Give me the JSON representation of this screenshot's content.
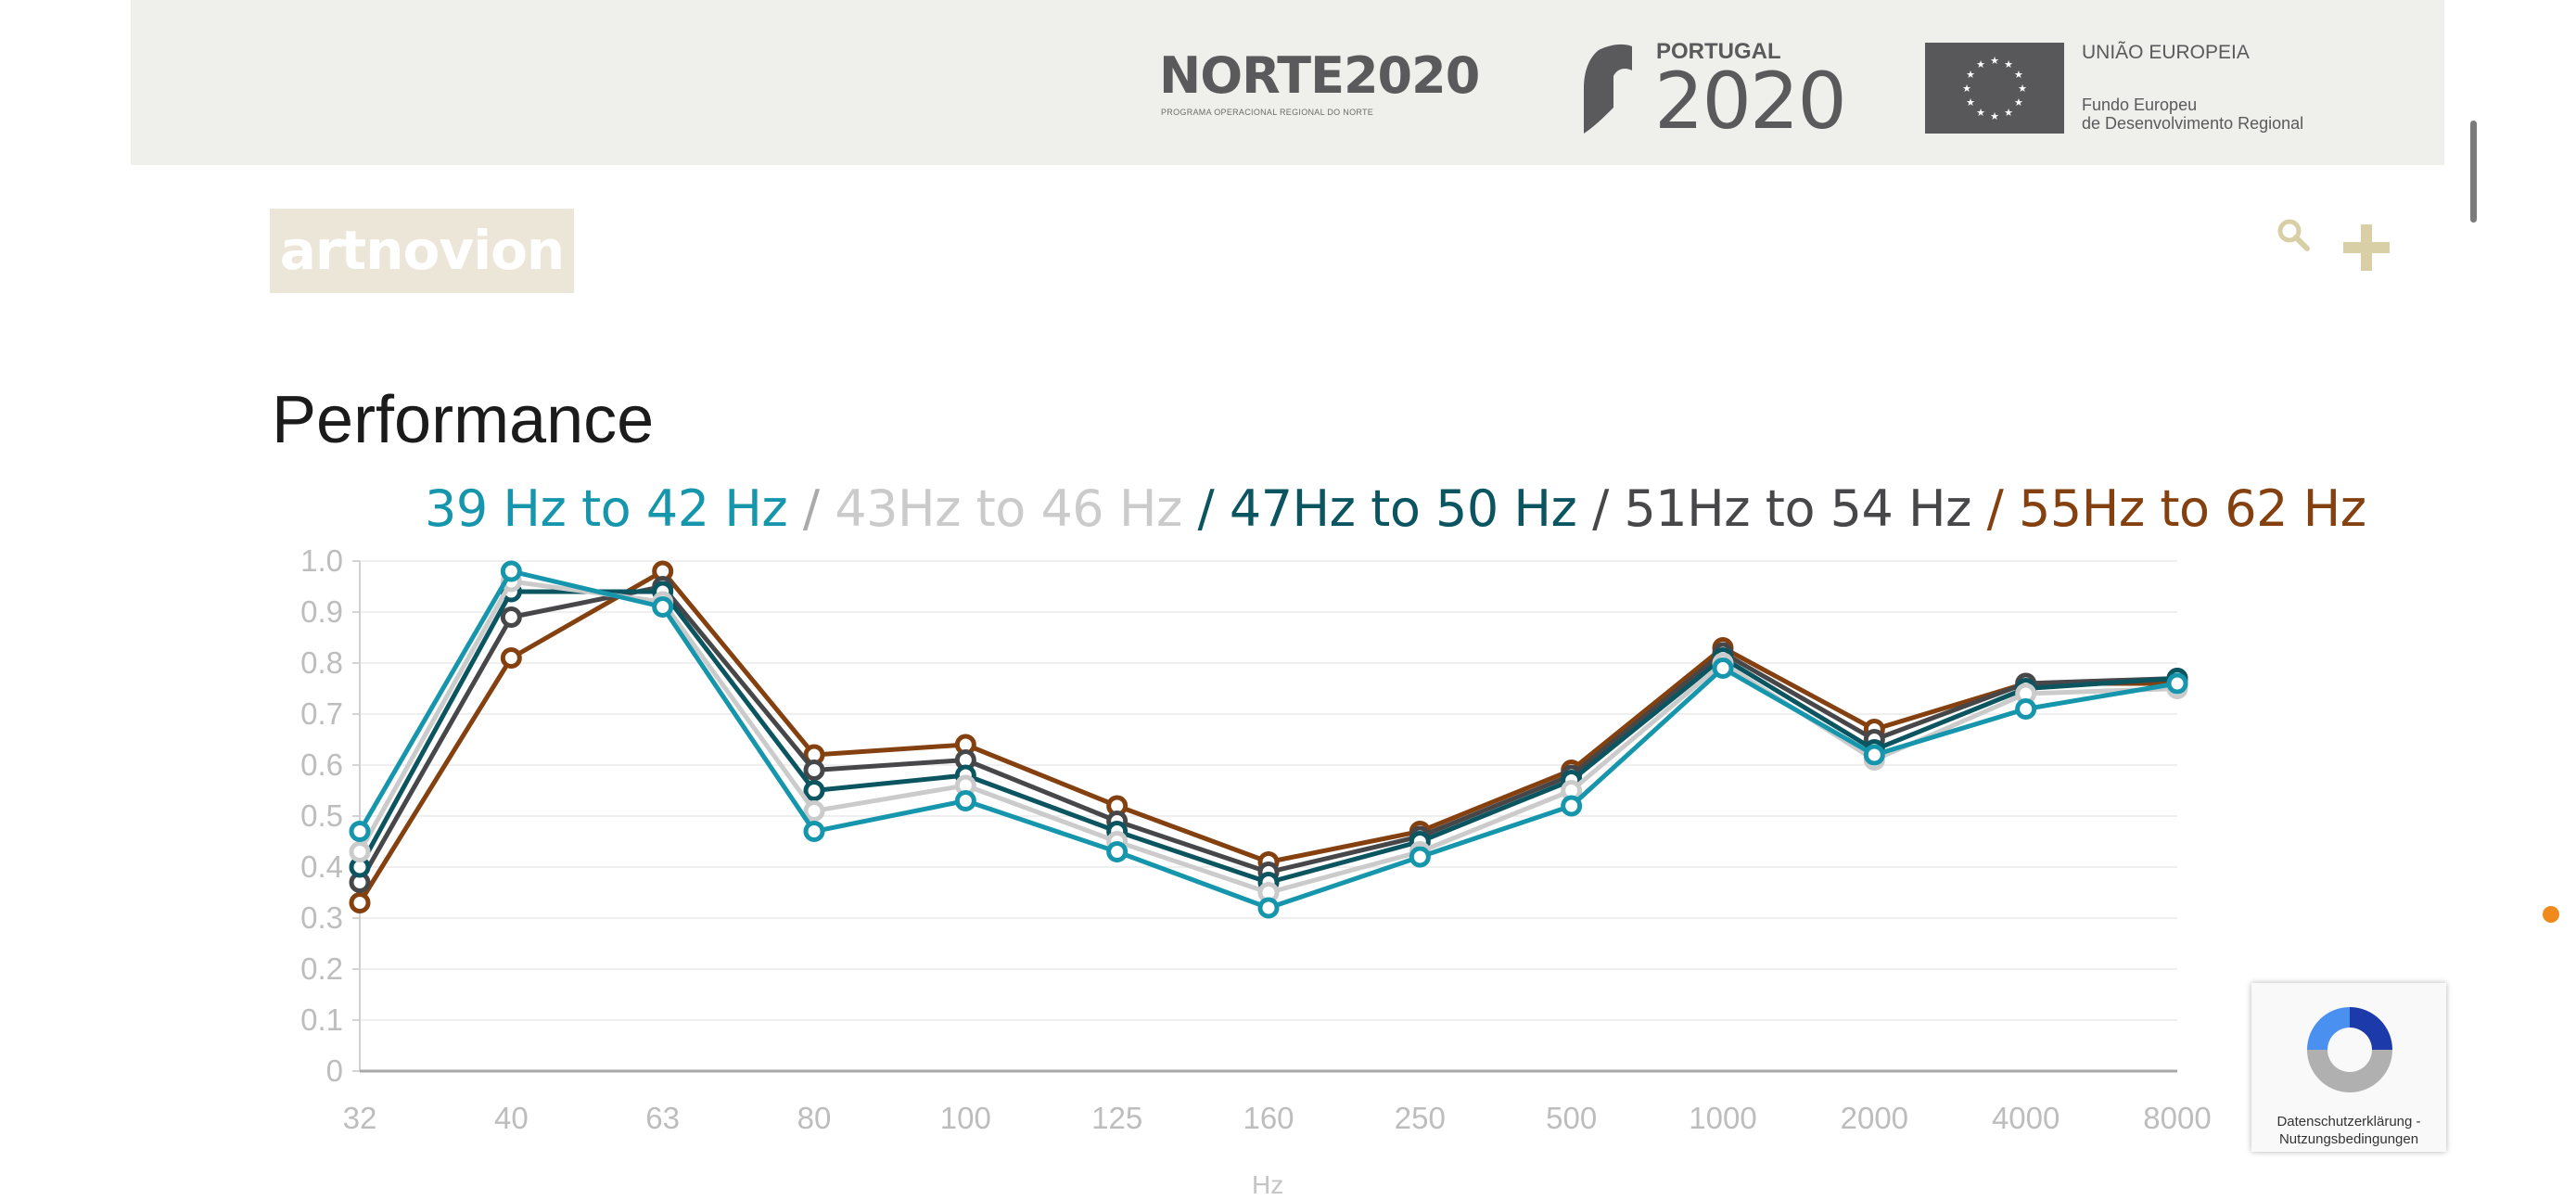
{
  "top_banner": {
    "norte_title": "NORTE2020",
    "norte_subtitle": "PROGRAMA OPERACIONAL REGIONAL DO NORTE",
    "portugal_label": "PORTUGAL",
    "portugal_year": "2020",
    "eu_title": "UNIÃO EUROPEIA",
    "eu_fund_line1": "Fundo Europeu",
    "eu_fund_line2": "de Desenvolvimento Regional"
  },
  "header": {
    "brand": "artnovion",
    "search_icon": "search-icon",
    "menu_icon": "plus-icon"
  },
  "page": {
    "title": "Performance"
  },
  "legend": {
    "items": [
      "39 Hz to 42 Hz",
      "43Hz to 46 Hz",
      "47Hz to 50 Hz",
      "51Hz to 54 Hz",
      "55Hz to 62 Hz"
    ],
    "separator": "/"
  },
  "chart_data": {
    "type": "line",
    "categories": [
      "32",
      "40",
      "63",
      "80",
      "100",
      "125",
      "160",
      "250",
      "500",
      "1000",
      "2000",
      "4000",
      "8000"
    ],
    "xlabel": "Hz",
    "ylabel": "",
    "ylim": [
      0,
      1.0
    ],
    "yticks": [
      "1.0",
      "0.9",
      "0.8",
      "0.7",
      "0.6",
      "0.5",
      "0.4",
      "0.3",
      "0.2",
      "0.1",
      "0"
    ],
    "grid": true,
    "series": [
      {
        "name": "39 Hz to 42 Hz",
        "color": "#1696ac",
        "values": [
          0.47,
          0.98,
          0.91,
          0.47,
          0.53,
          0.43,
          0.32,
          0.42,
          0.52,
          0.79,
          0.62,
          0.71,
          0.76
        ]
      },
      {
        "name": "43Hz to 46 Hz",
        "color": "#cbcbcb",
        "values": [
          0.43,
          0.96,
          0.92,
          0.51,
          0.56,
          0.45,
          0.35,
          0.43,
          0.55,
          0.8,
          0.61,
          0.74,
          0.75
        ]
      },
      {
        "name": "47Hz to 50 Hz",
        "color": "#0b5560",
        "values": [
          0.4,
          0.94,
          0.94,
          0.55,
          0.58,
          0.47,
          0.37,
          0.45,
          0.57,
          0.81,
          0.63,
          0.75,
          0.77
        ]
      },
      {
        "name": "51Hz to 54 Hz",
        "color": "#47474a",
        "values": [
          0.37,
          0.89,
          0.95,
          0.59,
          0.61,
          0.49,
          0.39,
          0.46,
          0.58,
          0.82,
          0.65,
          0.76,
          0.77
        ]
      },
      {
        "name": "55Hz to 62 Hz",
        "color": "#84400f",
        "values": [
          0.33,
          0.81,
          0.98,
          0.62,
          0.64,
          0.52,
          0.41,
          0.47,
          0.59,
          0.83,
          0.67,
          0.76,
          0.76
        ]
      }
    ]
  },
  "recaptcha": {
    "privacy": "Datenschutzerklärung",
    "separator": " - ",
    "terms": "Nutzungsbedingungen"
  }
}
